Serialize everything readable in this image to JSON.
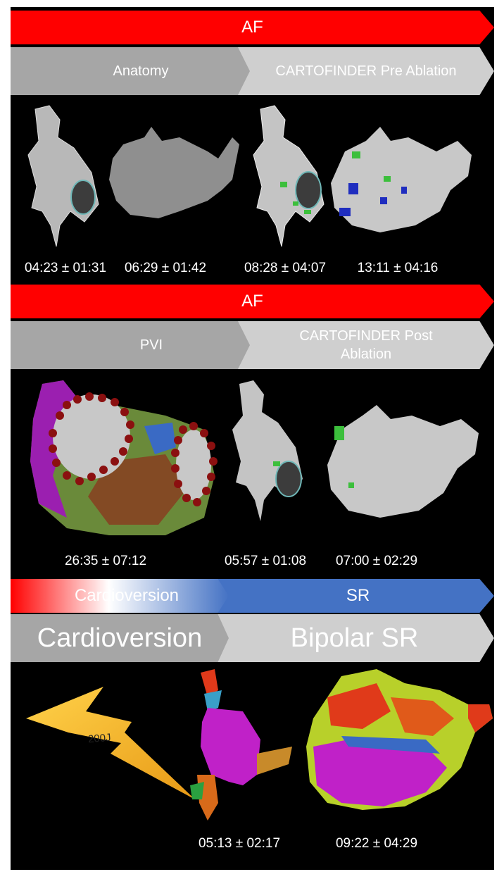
{
  "section1": {
    "banner": "AF",
    "step_left": "Anatomy",
    "step_right": "CARTOFINDER Pre Ablation",
    "times": [
      "04:23 ± 01:31",
      "06:29 ± 01:42",
      "08:28 ± 04:07",
      "13:11 ± 04:16"
    ]
  },
  "section2": {
    "banner": "AF",
    "step_left": "PVI",
    "step_right_line1": "CARTOFINDER Post",
    "step_right_line2": "Ablation",
    "times": [
      "26:35 ± 07:12",
      "05:57 ± 01:08",
      "07:00 ± 02:29"
    ]
  },
  "section3": {
    "banner_left": "Cardioversion",
    "banner_right": "SR",
    "step_left": "Cardioversion",
    "step_right": "Bipolar SR",
    "shock_label": "200J",
    "times": [
      "05:13 ± 02:17",
      "09:22 ± 04:29"
    ]
  },
  "colors": {
    "af_red": "#ff0000",
    "sr_blue": "#4472c4",
    "step_dark": "#a6a6a6",
    "step_light": "#cfcfcf",
    "background": "#000000",
    "lightning": "#f5b82a"
  }
}
